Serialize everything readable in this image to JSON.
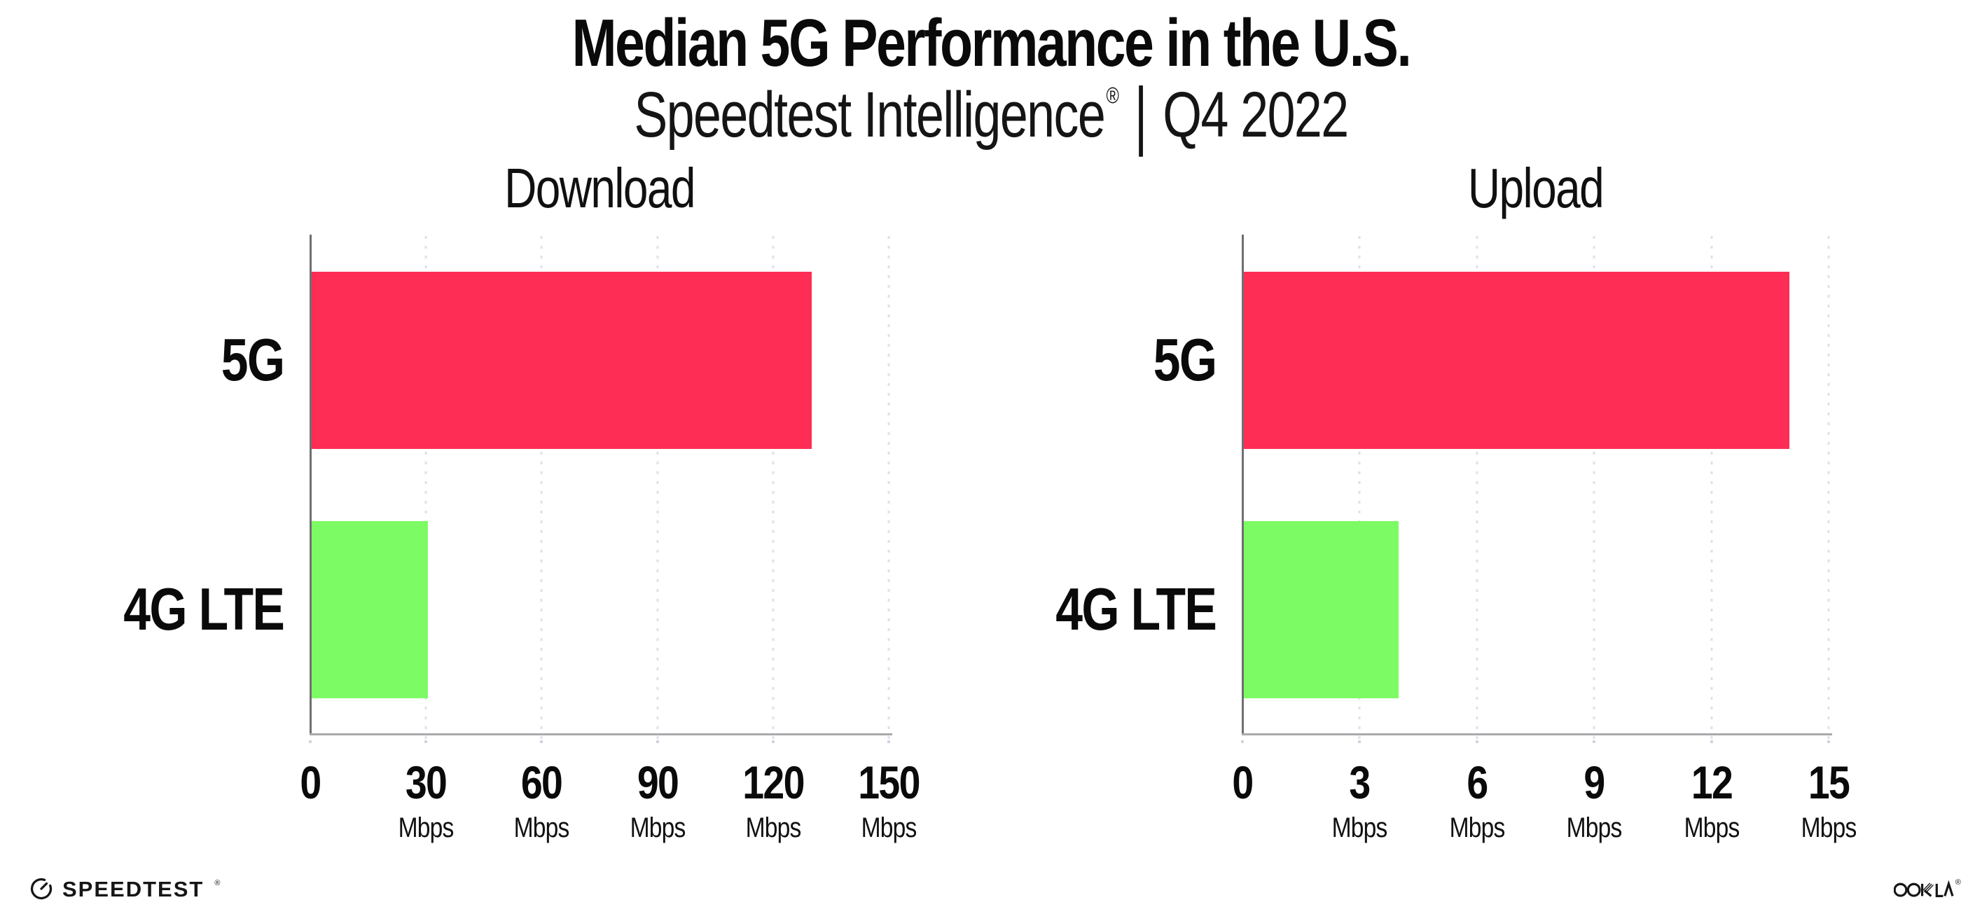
{
  "header": {
    "title": "Median 5G Performance in the U.S.",
    "subtitle_brand": "Speedtest Intelligence",
    "subtitle_reg": "®",
    "subtitle_sep": "|",
    "subtitle_period": "Q4 2022"
  },
  "chart_data": [
    {
      "type": "bar",
      "orientation": "horizontal",
      "title": "Download",
      "categories": [
        "5G",
        "4G LTE"
      ],
      "values": [
        130,
        30.5
      ],
      "unit": "Mbps",
      "xlim": [
        0,
        150
      ],
      "ticks": [
        0,
        30,
        60,
        90,
        120,
        150
      ],
      "bar_colors": [
        "#fd2d55",
        "#7dfb64"
      ],
      "grid": "dotted-vertical",
      "legend": "none"
    },
    {
      "type": "bar",
      "orientation": "horizontal",
      "title": "Upload",
      "categories": [
        "5G",
        "4G LTE"
      ],
      "values": [
        14,
        4
      ],
      "unit": "Mbps",
      "xlim": [
        0,
        15
      ],
      "ticks": [
        0,
        3,
        6,
        9,
        12,
        15
      ],
      "bar_colors": [
        "#fd2d55",
        "#7dfb64"
      ],
      "grid": "dotted-vertical",
      "legend": "none"
    }
  ],
  "footer": {
    "speedtest_label": "SPEEDTEST",
    "speedtest_mark": "®",
    "ookla_label": "OOKLA",
    "ookla_mark": "®"
  },
  "colors": {
    "bar_5g": "#fd2d55",
    "bar_4g_lte": "#7dfb64",
    "gridline": "#dfe0ea",
    "x_axis": "#a9a9ad",
    "y_axis": "#6f6f73",
    "text": "#0a0a0a",
    "background": "#ffffff"
  }
}
